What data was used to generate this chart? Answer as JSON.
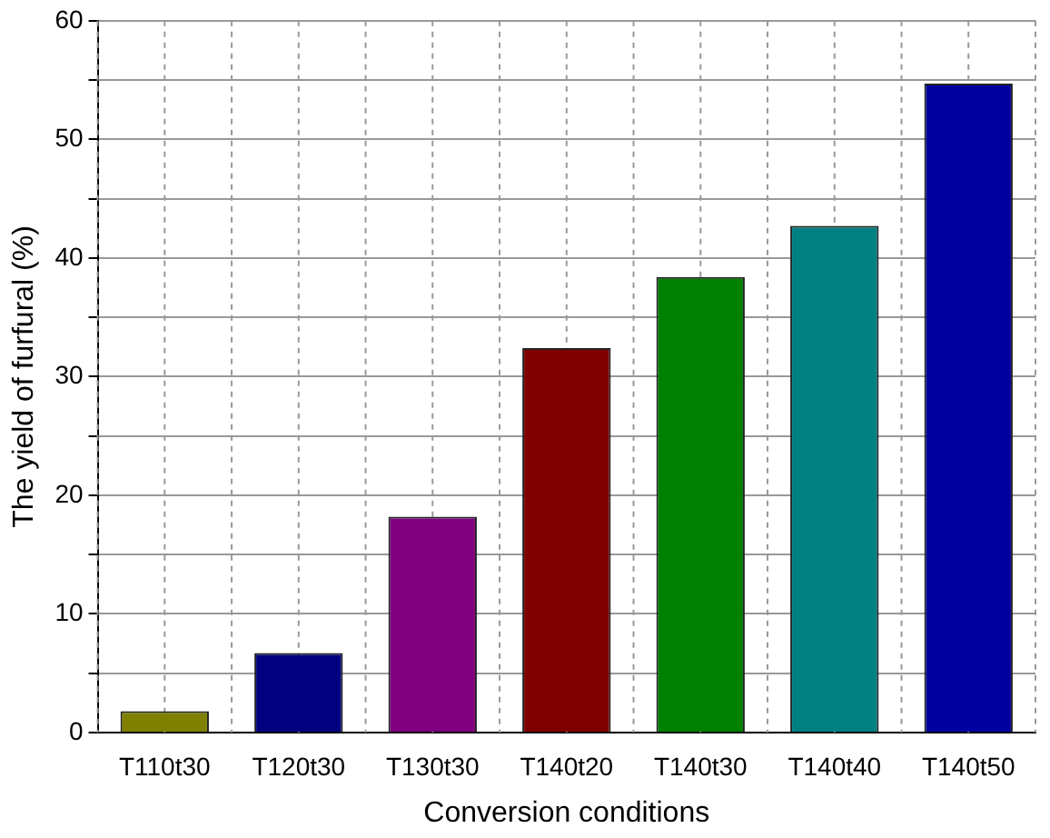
{
  "chart_data": {
    "type": "bar",
    "xlabel": "Conversion conditions",
    "ylabel": "The yield of furfural (%)",
    "categories": [
      "T110t30",
      "T120t30",
      "T130t30",
      "T140t20",
      "T140t30",
      "T140t40",
      "T140t50"
    ],
    "values": [
      1.8,
      6.7,
      18.2,
      32.4,
      38.4,
      42.7,
      54.7
    ],
    "colors": [
      "#808000",
      "#000080",
      "#800080",
      "#800000",
      "#008000",
      "#008080",
      "#0000a0"
    ],
    "ylim": [
      0,
      60
    ],
    "yticks": [
      0,
      {
        "value": 5,
        "label": null
      },
      10,
      {
        "value": 15,
        "label": null
      },
      20,
      {
        "value": 25,
        "label": null
      },
      30,
      {
        "value": 35,
        "label": null
      },
      40,
      {
        "value": 45,
        "label": null
      },
      50,
      {
        "value": 55,
        "label": null
      },
      60
    ],
    "grid": true,
    "legend": false
  }
}
